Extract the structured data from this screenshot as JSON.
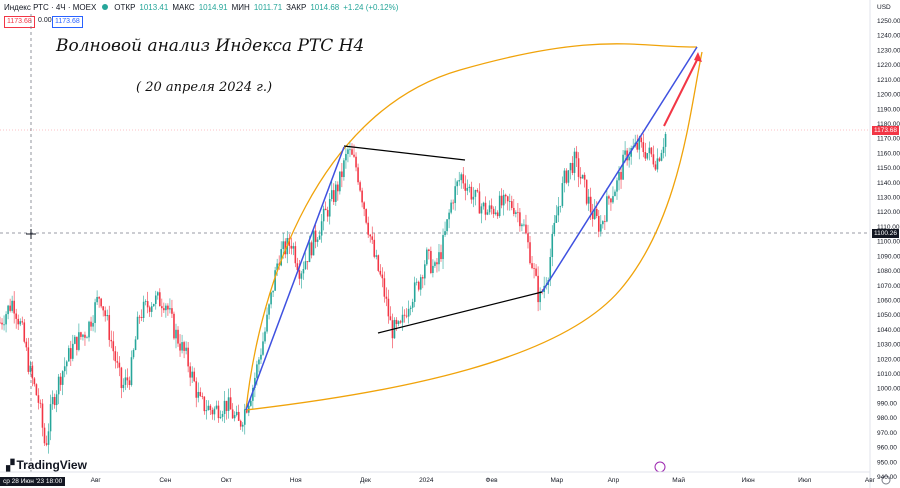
{
  "header": {
    "symbol": "Индекс РТС · 4Ч · MOEX",
    "open_label": "ОТКР",
    "open": "1013.41",
    "high_label": "МАКС",
    "high": "1014.91",
    "low_label": "МИН",
    "low": "1011.71",
    "close_label": "ЗАКР",
    "close": "1014.68",
    "change": "+1.24 (+0.12%)",
    "sell_price": "1173.68",
    "spread": "0.00",
    "buy_price": "1173.68"
  },
  "annotations": {
    "title": "Волновой анализ Индекса РТС H4",
    "date": "( 20 апреля 2024 г.)"
  },
  "currency": "USD",
  "last_price_tag": "1173.68",
  "crosshair_tag": "1100.26",
  "crosshair_date": "ср 28 Июн '23  18:00",
  "branding": "TradingView",
  "colors": {
    "up": "#26a69a",
    "down": "#f23645",
    "trend": "#3f51e0",
    "curve": "#f0a30a",
    "triangle": "#000000",
    "target": "#f23645"
  },
  "chart_data": {
    "type": "candlestick",
    "ylim": [
      940,
      1250
    ],
    "yticks": [
      940,
      950,
      960,
      970,
      980,
      990,
      1000,
      1010,
      1020,
      1030,
      1040,
      1050,
      1060,
      1070,
      1080,
      1090,
      1100,
      1110,
      1120,
      1130,
      1140,
      1150,
      1160,
      1170,
      1180,
      1190,
      1200,
      1210,
      1220,
      1230,
      1240,
      1250
    ],
    "x_ticks": [
      {
        "label": "Авг",
        "t": 0.11
      },
      {
        "label": "Сен",
        "t": 0.19
      },
      {
        "label": "Окт",
        "t": 0.26
      },
      {
        "label": "Ноя",
        "t": 0.34
      },
      {
        "label": "Дек",
        "t": 0.42
      },
      {
        "label": "2024",
        "t": 0.49
      },
      {
        "label": "Фев",
        "t": 0.565
      },
      {
        "label": "Мар",
        "t": 0.64
      },
      {
        "label": "Апр",
        "t": 0.705
      },
      {
        "label": "Май",
        "t": 0.78
      },
      {
        "label": "Июн",
        "t": 0.86
      },
      {
        "label": "Июл",
        "t": 0.925
      },
      {
        "label": "Авг",
        "t": 1.0
      }
    ],
    "price_path": [
      [
        0.0,
        1045
      ],
      [
        0.015,
        1060
      ],
      [
        0.025,
        1040
      ],
      [
        0.035,
        1010
      ],
      [
        0.045,
        990
      ],
      [
        0.052,
        960
      ],
      [
        0.06,
        990
      ],
      [
        0.07,
        1010
      ],
      [
        0.085,
        1030
      ],
      [
        0.1,
        1040
      ],
      [
        0.115,
        1065
      ],
      [
        0.125,
        1040
      ],
      [
        0.14,
        1000
      ],
      [
        0.15,
        1010
      ],
      [
        0.16,
        1050
      ],
      [
        0.175,
        1060
      ],
      [
        0.19,
        1060
      ],
      [
        0.2,
        1040
      ],
      [
        0.215,
        1020
      ],
      [
        0.23,
        990
      ],
      [
        0.245,
        985
      ],
      [
        0.26,
        990
      ],
      [
        0.275,
        975
      ],
      [
        0.29,
        1000
      ],
      [
        0.305,
        1040
      ],
      [
        0.32,
        1090
      ],
      [
        0.335,
        1100
      ],
      [
        0.345,
        1080
      ],
      [
        0.36,
        1100
      ],
      [
        0.375,
        1120
      ],
      [
        0.39,
        1140
      ],
      [
        0.4,
        1162
      ],
      [
        0.41,
        1150
      ],
      [
        0.42,
        1120
      ],
      [
        0.43,
        1090
      ],
      [
        0.44,
        1070
      ],
      [
        0.45,
        1040
      ],
      [
        0.46,
        1040
      ],
      [
        0.47,
        1060
      ],
      [
        0.48,
        1070
      ],
      [
        0.49,
        1090
      ],
      [
        0.5,
        1080
      ],
      [
        0.51,
        1100
      ],
      [
        0.52,
        1130
      ],
      [
        0.53,
        1145
      ],
      [
        0.545,
        1130
      ],
      [
        0.56,
        1120
      ],
      [
        0.575,
        1125
      ],
      [
        0.59,
        1125
      ],
      [
        0.6,
        1115
      ],
      [
        0.61,
        1090
      ],
      [
        0.62,
        1060
      ],
      [
        0.63,
        1080
      ],
      [
        0.64,
        1120
      ],
      [
        0.65,
        1145
      ],
      [
        0.66,
        1155
      ],
      [
        0.67,
        1140
      ],
      [
        0.68,
        1120
      ],
      [
        0.69,
        1110
      ],
      [
        0.7,
        1130
      ],
      [
        0.71,
        1140
      ],
      [
        0.72,
        1160
      ],
      [
        0.735,
        1165
      ],
      [
        0.745,
        1160
      ],
      [
        0.755,
        1155
      ],
      [
        0.765,
        1173
      ]
    ]
  }
}
